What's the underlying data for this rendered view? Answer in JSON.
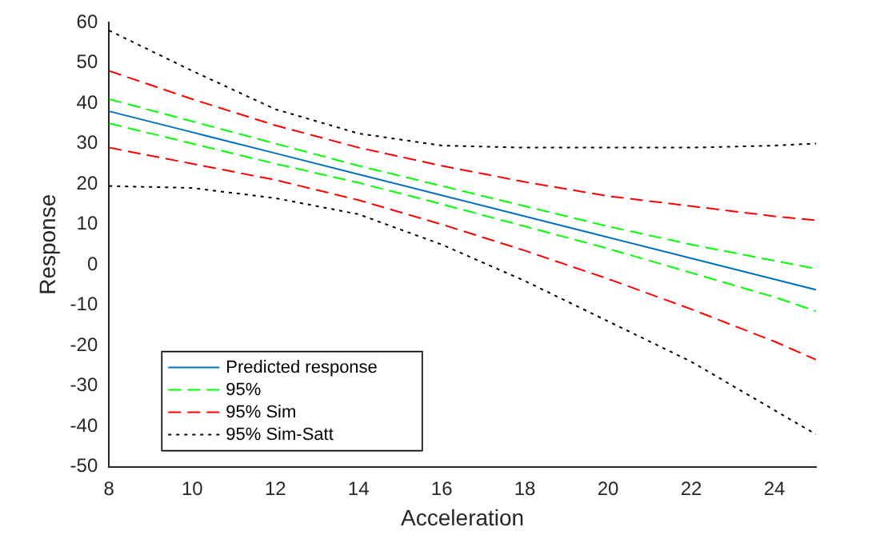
{
  "chart_data": {
    "type": "line",
    "xlabel": "Acceleration",
    "ylabel": "Response",
    "xlim": [
      8,
      25
    ],
    "xticks": [
      8,
      10,
      12,
      14,
      16,
      18,
      20,
      22,
      24
    ],
    "ylim": [
      -50,
      60
    ],
    "yticks": [
      -50,
      -40,
      -30,
      -20,
      -10,
      0,
      10,
      20,
      30,
      40,
      50,
      60
    ],
    "grid": false,
    "legend": "bottom left",
    "x": [
      8,
      10,
      12,
      14,
      16,
      18,
      20,
      22,
      24,
      25
    ],
    "series": [
      {
        "name": "Predicted response",
        "color": "#0072bd",
        "line_style": "solid",
        "values": [
          38,
          32.8,
          27.6,
          22.4,
          17.2,
          12,
          6.8,
          1.6,
          -3.6,
          -6.2
        ]
      },
      {
        "name": "95%",
        "color": "#00ff00",
        "line_style": "dashed",
        "values": [
          41,
          35.5,
          30,
          24.5,
          19.5,
          14.5,
          9.5,
          5,
          1,
          -1
        ]
      },
      {
        "color": "#00ff00",
        "line_style": "dashed",
        "values": [
          35,
          30,
          25,
          20.3,
          15,
          9.5,
          4,
          -2,
          -8,
          -11.5
        ]
      },
      {
        "name": "95% Sim",
        "color": "#ff0000",
        "line_style": "dashed",
        "values": [
          48,
          41,
          34.5,
          29,
          24.5,
          20.5,
          17,
          14.5,
          12,
          11
        ]
      },
      {
        "color": "#ff0000",
        "line_style": "dashed",
        "values": [
          29,
          25,
          21,
          16,
          10,
          3.5,
          -3.5,
          -11,
          -19,
          -23.5
        ]
      },
      {
        "name": "95% Sim-Satt",
        "color": "#000000",
        "line_style": "dotted",
        "values": [
          58,
          48,
          38.5,
          32.5,
          29.5,
          29,
          29,
          29,
          29.5,
          30
        ]
      },
      {
        "color": "#000000",
        "line_style": "dotted",
        "values": [
          19.5,
          19,
          16.5,
          12.5,
          5,
          -4,
          -14,
          -24,
          -36,
          -42
        ]
      }
    ]
  }
}
